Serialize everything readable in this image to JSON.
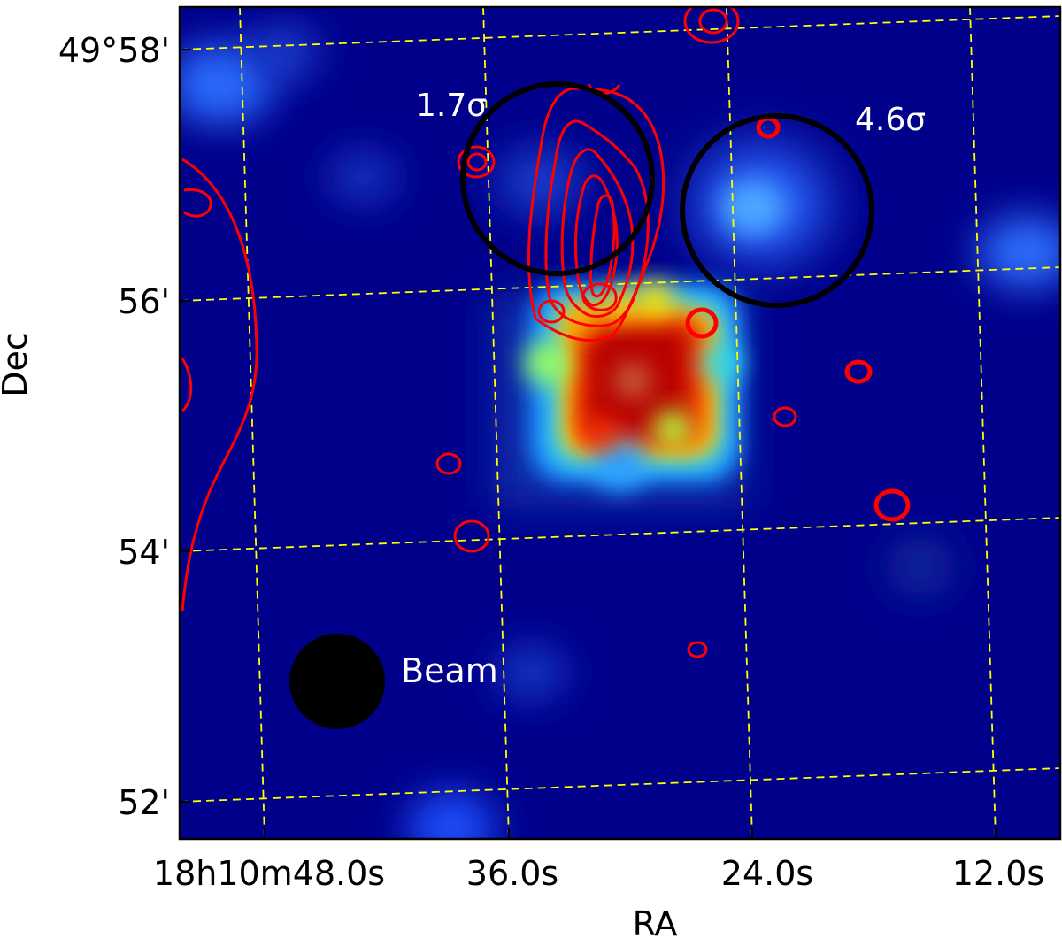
{
  "chart_data": {
    "type": "heatmap",
    "xlabel": "RA",
    "ylabel": "Dec",
    "x_ticks": [
      "18h10m48.0s",
      "36.0s",
      "24.0s",
      "12.0s"
    ],
    "y_ticks": [
      "49°58'",
      "56'",
      "54'",
      "52'"
    ],
    "grid": true,
    "grid_color": "#ffff00",
    "grid_style": "dashed",
    "colormap": "jet",
    "background_color": "#00008b",
    "contour_color": "#ff0000",
    "annotations": [
      {
        "label": "1.7σ",
        "symbol": "circle",
        "color": "#000000"
      },
      {
        "label": "4.6σ",
        "symbol": "circle",
        "color": "#000000"
      },
      {
        "label": "Beam",
        "symbol": "filled-circle",
        "color": "#000000"
      }
    ]
  }
}
